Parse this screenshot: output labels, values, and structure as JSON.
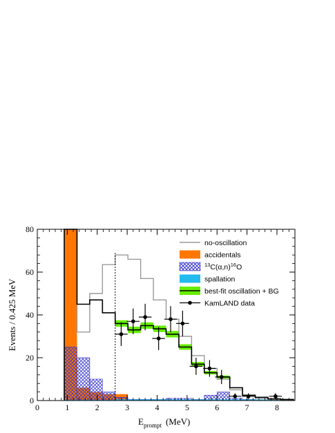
{
  "chart_data": {
    "type": "histogram",
    "xlabel_main": "E",
    "xlabel_sub": "prompt",
    "xlabel_unit": "(MeV)",
    "ylabel": "Events / 0.425 MeV",
    "xlim": [
      0,
      8.6
    ],
    "ylim": [
      0,
      80
    ],
    "xticks": [
      0,
      1,
      2,
      3,
      4,
      5,
      6,
      7,
      8
    ],
    "yticks": [
      0,
      20,
      40,
      60,
      80
    ],
    "bin_edges": [
      0.9,
      1.325,
      1.75,
      2.175,
      2.6,
      3.025,
      3.45,
      3.875,
      4.3,
      4.725,
      5.15,
      5.575,
      6.0,
      6.425,
      6.85,
      7.275,
      7.7,
      8.125,
      8.55
    ],
    "threshold_line_x": 2.6,
    "series": [
      {
        "name": "no-oscillation",
        "style": "line",
        "color": "#999999",
        "values": [
          80,
          32,
          50,
          63.5,
          68,
          66,
          57,
          47,
          38,
          30,
          21,
          15,
          10,
          5,
          2,
          1,
          0.5,
          0.3
        ]
      },
      {
        "name": "accidentals",
        "style": "fill",
        "color": "#ff7700",
        "values": [
          80,
          6,
          4,
          3,
          3,
          0,
          0,
          0,
          0,
          0,
          0,
          0,
          0,
          0,
          0,
          0,
          0,
          0
        ]
      },
      {
        "name": "¹³C(α,n)¹⁶O",
        "label_parts": [
          "13",
          "C(α,n)",
          "16",
          "O"
        ],
        "style": "hatch",
        "color": "#3333cc",
        "values": [
          25,
          20,
          10,
          4,
          1.5,
          0.5,
          0.5,
          0.5,
          1,
          1,
          0.5,
          2.5,
          4,
          1,
          0.5,
          0.3,
          0.2,
          0.1
        ]
      },
      {
        "name": "spallation",
        "style": "fill",
        "color": "#22bbee",
        "values": [
          0.3,
          0.3,
          0.3,
          0.3,
          0.5,
          0.5,
          0.5,
          0.5,
          0.5,
          0.5,
          0.5,
          0.5,
          0.5,
          0.5,
          0.5,
          0.5,
          0.5,
          0.5
        ]
      },
      {
        "name": "best-fit oscillation + BG",
        "style": "line-band",
        "color": "#000000",
        "band_color": "#66ee00",
        "values": [
          80,
          45,
          47,
          41,
          36,
          33,
          35,
          33.5,
          31,
          25,
          17,
          13,
          11,
          6,
          2.5,
          1.5,
          0.8,
          0.5
        ],
        "band_halfwidth": [
          0,
          0,
          0,
          0,
          1.5,
          1.5,
          1.5,
          1.5,
          1.5,
          1.3,
          1.0,
          0.8,
          0.7,
          0,
          0,
          0,
          0,
          0
        ]
      },
      {
        "name": "KamLAND data",
        "style": "points",
        "color": "#000000",
        "points": [
          {
            "x": 2.8,
            "y": 31,
            "yerr": 5.5
          },
          {
            "x": 3.2,
            "y": 37,
            "yerr": 6
          },
          {
            "x": 3.6,
            "y": 39,
            "yerr": 6.2
          },
          {
            "x": 4.05,
            "y": 29,
            "yerr": 5.4
          },
          {
            "x": 4.45,
            "y": 38,
            "yerr": 6.1
          },
          {
            "x": 4.85,
            "y": 36,
            "yerr": 6
          },
          {
            "x": 5.3,
            "y": 16,
            "yerr": 4
          },
          {
            "x": 5.75,
            "y": 15,
            "yerr": 3.9
          },
          {
            "x": 6.15,
            "y": 11,
            "yerr": 3.3
          },
          {
            "x": 6.6,
            "y": 2,
            "yerr": 1.4
          },
          {
            "x": 7.05,
            "y": 2,
            "yerr": 1.4
          },
          {
            "x": 7.95,
            "y": 2,
            "yerr": 1.4
          }
        ]
      }
    ],
    "legend": {
      "placement": "top-right",
      "entries": [
        "no-oscillation",
        "accidentals",
        "¹³C(α,n)¹⁶O",
        "spallation",
        "best-fit oscillation + BG",
        "KamLAND data"
      ]
    }
  }
}
